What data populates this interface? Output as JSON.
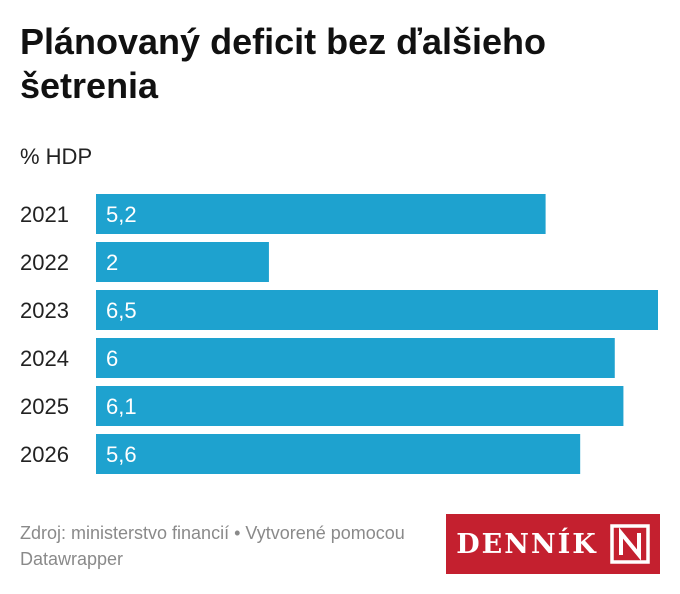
{
  "title": "Plánovaný deficit bez ďalšieho šetrenia",
  "subtitle": "% HDP",
  "chart_data": {
    "type": "bar",
    "orientation": "horizontal",
    "categories": [
      "2021",
      "2022",
      "2023",
      "2024",
      "2025",
      "2026"
    ],
    "values": [
      5.2,
      2,
      6.5,
      6,
      6.1,
      5.6
    ],
    "labels": [
      "5,2",
      "2",
      "6,5",
      "6",
      "6,1",
      "5,6"
    ],
    "xlim": [
      0,
      6.5
    ],
    "grid": false,
    "legend": "none",
    "bar_color": "#1ea2cf",
    "label_color": "#ffffff"
  },
  "footer": {
    "source": "Zdroj: ministerstvo financií • Vytvorené pomocou Datawrapper"
  },
  "logo": {
    "text": "DENNÍK",
    "mark": "N",
    "color": "#c4202f"
  }
}
